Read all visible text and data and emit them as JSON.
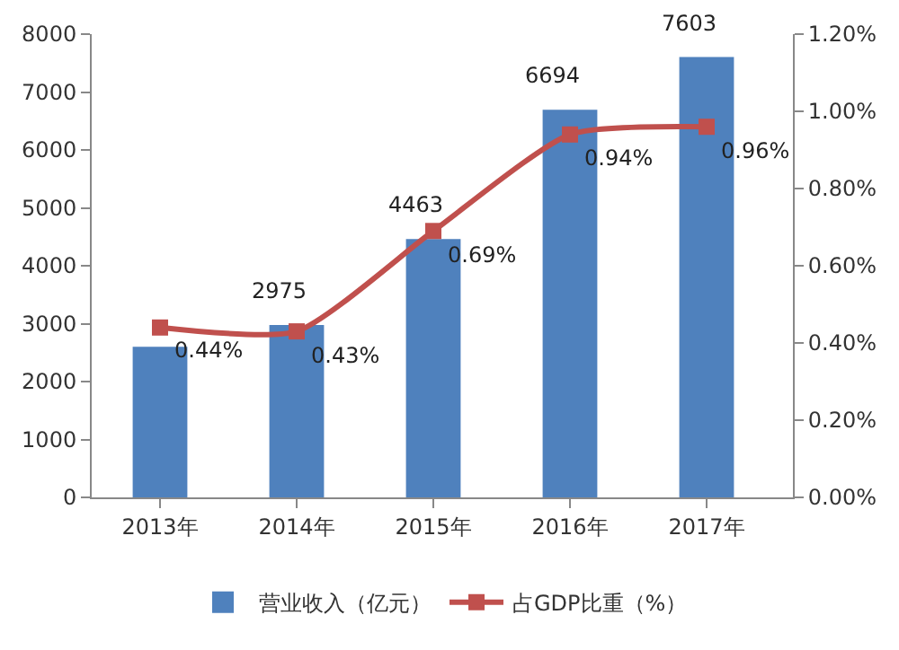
{
  "chart_data": {
    "type": "bar",
    "categories": [
      "2013年",
      "2014年",
      "2015年",
      "2016年",
      "2017年"
    ],
    "series": [
      {
        "name": "营业收入（亿元）",
        "color": "#4f81bd",
        "values": [
          2600,
          2975,
          4463,
          6694,
          7603
        ],
        "value_labels": [
          null,
          "2975",
          "4463",
          "6694",
          "7603"
        ]
      },
      {
        "name": "占GDP比重（%）",
        "type": "line",
        "axis": "y2",
        "color": "#c0504d",
        "values": [
          0.44,
          0.43,
          0.69,
          0.94,
          0.96
        ],
        "value_labels": [
          "0.44%",
          "0.43%",
          "0.69%",
          "0.94%",
          "0.96%"
        ]
      }
    ],
    "ylim": [
      0,
      8000
    ],
    "yticks": [
      0,
      1000,
      2000,
      3000,
      4000,
      5000,
      6000,
      7000,
      8000
    ],
    "y2lim": [
      0,
      1.2
    ],
    "y2ticks": [
      {
        "value": 0,
        "label": "0.00%"
      },
      {
        "value": 0.2,
        "label": "0.20%"
      },
      {
        "value": 0.4,
        "label": "0.40%"
      },
      {
        "value": 0.6,
        "label": "0.60%"
      },
      {
        "value": 0.8,
        "label": "0.80%"
      },
      {
        "value": 1.0,
        "label": "1.00%"
      },
      {
        "value": 1.2,
        "label": "1.20%"
      }
    ],
    "grid": false,
    "legend": "bottom",
    "marker": "square",
    "line_style": "solid"
  }
}
